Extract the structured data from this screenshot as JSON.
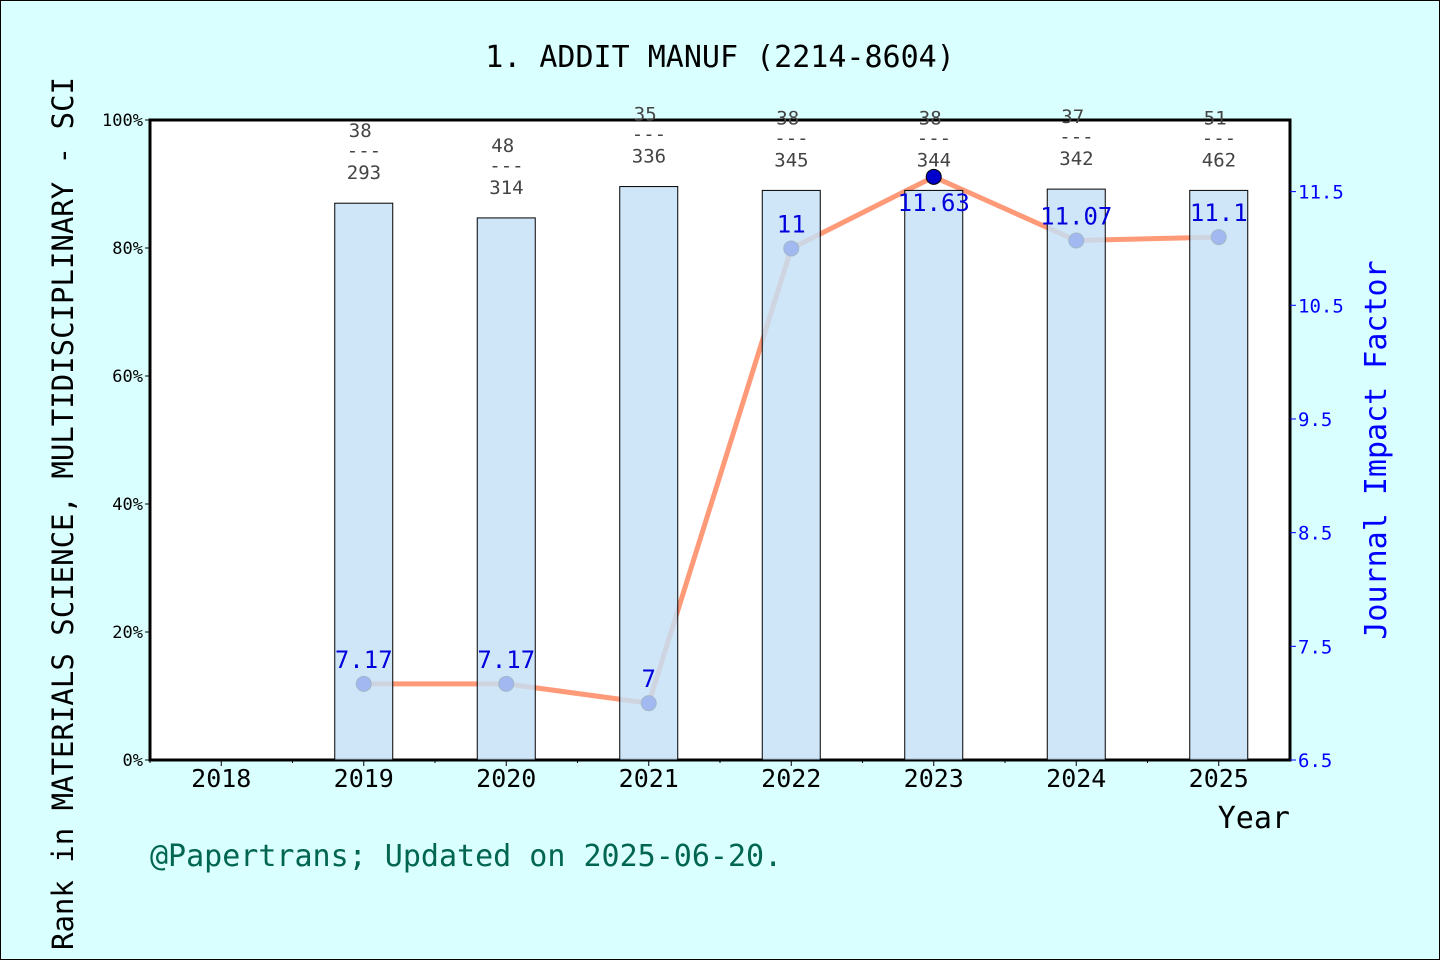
{
  "chart_data": {
    "type": "bar+line",
    "title": "1. ADDIT MANUF (2214-8604)",
    "xlabel": "Year",
    "ylabel_left": "Rank in MATERIALS SCIENCE, MULTIDISCIPLINARY - SCI",
    "ylabel_right": "Journal Impact Factor",
    "categories": [
      "2018",
      "2019",
      "2020",
      "2021",
      "2022",
      "2023",
      "2024",
      "2025"
    ],
    "left_axis": {
      "range": [
        0,
        100
      ],
      "ticks": [
        "0%",
        "20%",
        "40%",
        "60%",
        "80%",
        "100%"
      ]
    },
    "right_axis": {
      "range": [
        6.5,
        12.13
      ],
      "ticks": [
        "6.5",
        "7.5",
        "8.5",
        "9.5",
        "10.5",
        "11.5"
      ]
    },
    "rank_bars": [
      {
        "year": "2019",
        "rank": "38",
        "total": "293",
        "percentile": 87.0
      },
      {
        "year": "2020",
        "rank": "48",
        "total": "314",
        "percentile": 84.7
      },
      {
        "year": "2021",
        "rank": "35",
        "total": "336",
        "percentile": 89.6
      },
      {
        "year": "2022",
        "rank": "38",
        "total": "345",
        "percentile": 89.0
      },
      {
        "year": "2023",
        "rank": "38",
        "total": "344",
        "percentile": 89.0
      },
      {
        "year": "2024",
        "rank": "37",
        "total": "342",
        "percentile": 89.2
      },
      {
        "year": "2025",
        "rank": "51",
        "total": "462",
        "percentile": 89.0
      }
    ],
    "impact_factor": [
      {
        "year": "2019",
        "value": 7.17,
        "label": "7.17"
      },
      {
        "year": "2020",
        "value": 7.17,
        "label": "7.17"
      },
      {
        "year": "2021",
        "value": 7,
        "label": "7"
      },
      {
        "year": "2022",
        "value": 11,
        "label": "11"
      },
      {
        "year": "2023",
        "value": 11.63,
        "label": "11.63"
      },
      {
        "year": "2024",
        "value": 11.07,
        "label": "11.07"
      },
      {
        "year": "2025",
        "value": 11.1,
        "label": "11.1"
      }
    ],
    "colors": {
      "bar": "#c5e0f8",
      "line": "#ff9a78",
      "point": "#0000cc",
      "right_axis": "#0000ff",
      "background": "#d9ffff"
    },
    "grid": false
  },
  "footer": "@Papertrans; Updated on 2025-06-20."
}
